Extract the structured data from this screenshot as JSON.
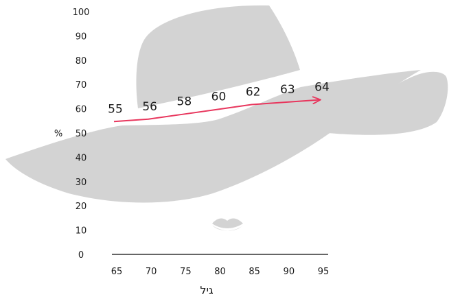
{
  "chart_data": {
    "type": "line",
    "x": [
      65,
      70,
      75,
      80,
      85,
      90,
      95
    ],
    "series": [
      {
        "values": [
          55,
          56,
          58,
          60,
          62,
          63,
          64
        ],
        "color": "#e8365d"
      }
    ],
    "data_labels": [
      "55",
      "56",
      "58",
      "60",
      "62",
      "63",
      "64"
    ],
    "x_ticks": [
      "65",
      "70",
      "75",
      "80",
      "85",
      "90",
      "95"
    ],
    "y_ticks": [
      "0",
      "10",
      "20",
      "30",
      "40",
      "50",
      "60",
      "70",
      "80",
      "90",
      "100"
    ],
    "xlabel": "גיל",
    "ylabel": "%",
    "ylim": [
      0,
      100
    ],
    "xlim": [
      65,
      95
    ],
    "grid": false,
    "line_end": "arrow",
    "decoration": "wide-brim hat and lips illustration (gray)",
    "colors": {
      "line": "#e8365d",
      "decoration": "#d3d3d3",
      "axis": "#333333",
      "text": "#1a1a1a"
    }
  }
}
